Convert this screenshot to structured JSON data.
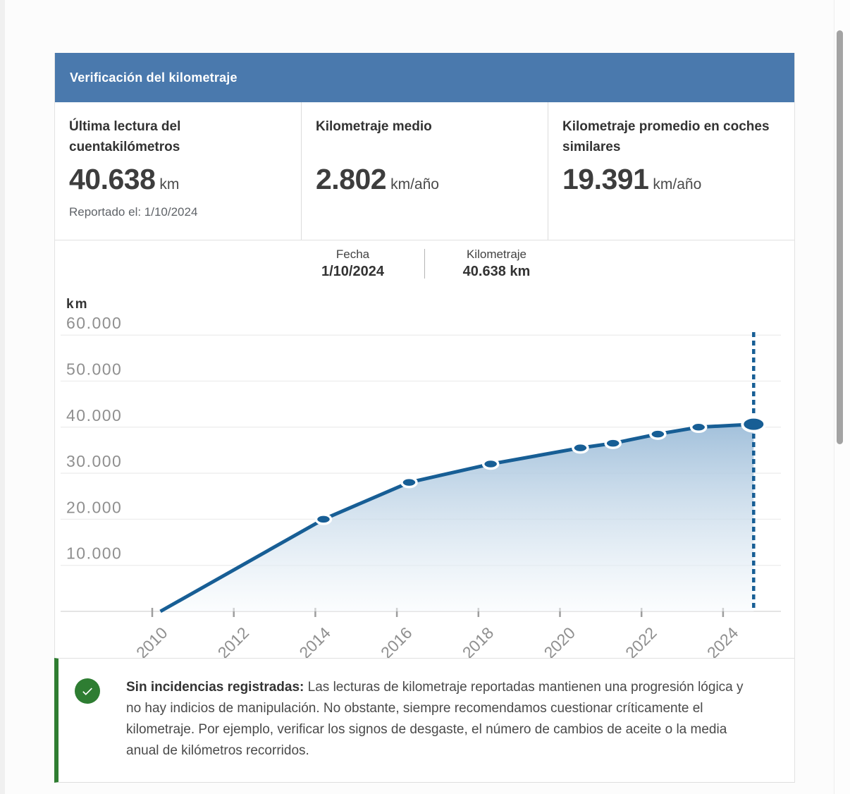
{
  "header": {
    "title": "Verificación del kilometraje"
  },
  "stats": [
    {
      "title": "Última lectura del cuentakilómetros",
      "value": "40.638",
      "unit": "km",
      "note": "Reportado el: 1/10/2024"
    },
    {
      "title": "Kilometraje medio",
      "value": "2.802",
      "unit": "km/año",
      "note": ""
    },
    {
      "title": "Kilometraje promedio en coches similares",
      "value": "19.391",
      "unit": "km/año",
      "note": ""
    }
  ],
  "tooltip": {
    "date_label": "Fecha",
    "date_value": "1/10/2024",
    "km_label": "Kilometraje",
    "km_value": "40.638 km"
  },
  "chart_data": {
    "type": "area",
    "title": "",
    "xlabel": "",
    "ylabel": "km",
    "x_ticks": [
      2010,
      2012,
      2014,
      2016,
      2018,
      2020,
      2022,
      2024
    ],
    "y_ticks": [
      10000,
      20000,
      30000,
      40000,
      50000,
      60000
    ],
    "xlim": [
      2008.8,
      2025.4
    ],
    "ylim": [
      0,
      64000
    ],
    "grid": true,
    "legend_position": "none",
    "points": [
      {
        "year": 2010.2,
        "km": 0
      },
      {
        "year": 2014.2,
        "km": 20000
      },
      {
        "year": 2016.3,
        "km": 28000
      },
      {
        "year": 2018.3,
        "km": 32000
      },
      {
        "year": 2020.5,
        "km": 35500
      },
      {
        "year": 2021.3,
        "km": 36500
      },
      {
        "year": 2022.4,
        "km": 38500
      },
      {
        "year": 2023.4,
        "km": 40000
      },
      {
        "year": 2024.75,
        "km": 40638
      }
    ],
    "current_reading": {
      "date": "1/10/2024",
      "km": 40638,
      "year": 2024.75
    }
  },
  "assessment": {
    "title": "Sin incidencias registradas:",
    "text": "Las lecturas de kilometraje reportadas mantienen una progresión lógica y no hay indicios de manipulación. No obstante, siempre recomendamos cuestionar críticamente el kilometraje. Por ejemplo, verificar los signos de desgaste, el número de cambios de aceite o la media anual de kilómetros recorridos.",
    "icon": "check-circle-icon"
  },
  "colors": {
    "header_bg": "#4a79ad",
    "chart_line": "#175e95",
    "chart_fill_top": "#9dbdd9",
    "chart_fill_bottom": "#f8fbfd",
    "success_green": "#2e7d32",
    "axis_text": "#8f8f8f"
  }
}
